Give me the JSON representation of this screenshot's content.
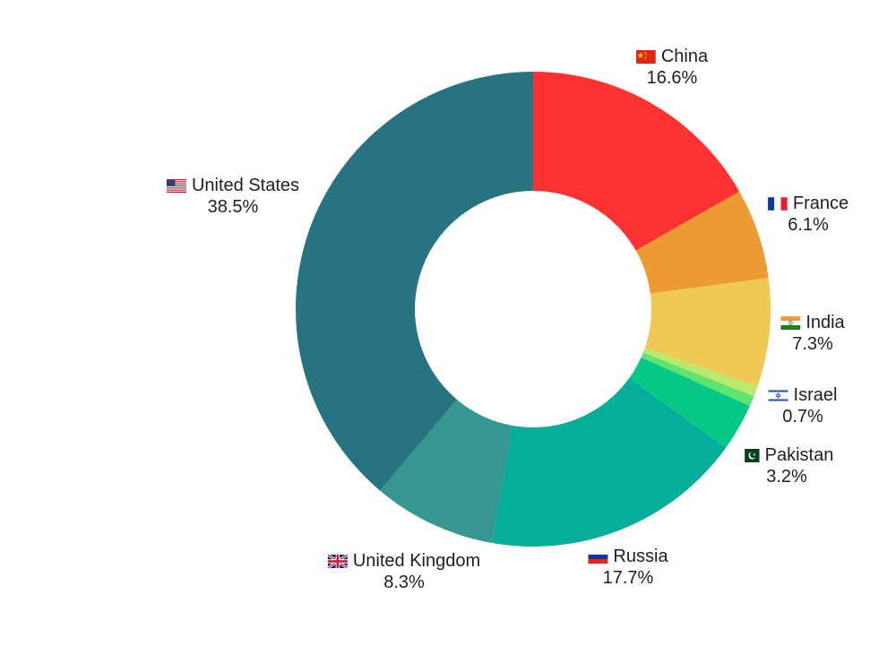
{
  "chart_data": {
    "type": "pie",
    "variant": "donut",
    "slices": [
      {
        "label": "China",
        "value": 16.6,
        "value_label": "16.6%",
        "color": "#fe3232",
        "flag_icon": "china-flag-icon"
      },
      {
        "label": "France",
        "value": 6.1,
        "value_label": "6.1%",
        "color": "#ee9a32",
        "flag_icon": "france-flag-icon"
      },
      {
        "label": "India",
        "value": 7.3,
        "value_label": "7.3%",
        "color": "#f0c954",
        "flag_icon": "india-flag-icon"
      },
      {
        "label": "",
        "value": 0.7,
        "value_label": "",
        "color": "#bce96c",
        "flag_icon": ""
      },
      {
        "label": "Israel",
        "value": 0.7,
        "value_label": "0.7%",
        "color": "#5fe470",
        "flag_icon": "israel-flag-icon"
      },
      {
        "label": "Pakistan",
        "value": 3.2,
        "value_label": "3.2%",
        "color": "#08c888",
        "flag_icon": "pakistan-flag-icon"
      },
      {
        "label": "Russia",
        "value": 17.7,
        "value_label": "17.7%",
        "color": "#05ae9a",
        "flag_icon": "russia-flag-icon"
      },
      {
        "label": "United Kingdom",
        "value": 8.3,
        "value_label": "8.3%",
        "color": "#369692",
        "flag_icon": "uk-flag-icon"
      },
      {
        "label": "United States",
        "value": 38.5,
        "value_label": "38.5%",
        "color": "#277382",
        "flag_icon": "us-flag-icon"
      }
    ],
    "start_angle_deg": 0,
    "direction": "clockwise",
    "title": "",
    "legend": "none"
  }
}
